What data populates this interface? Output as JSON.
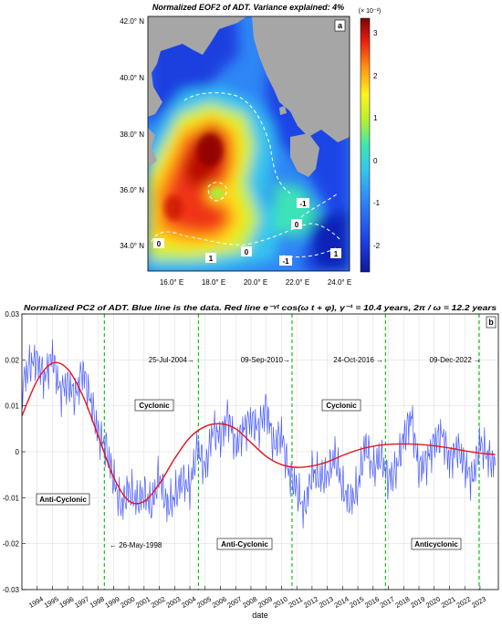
{
  "panel_a": {
    "title": "Normalized EOF2 of ADT. Variance explained: 4%",
    "panel_label": "a",
    "lat_ticks": [
      "42.0° N",
      "40.0° N",
      "38.0° N",
      "36.0° N",
      "34.0° N"
    ],
    "lon_ticks": [
      "16.0° E",
      "18.0° E",
      "20.0° E",
      "22.0° E",
      "24.0° E"
    ],
    "colorbar": {
      "scale_label": "(× 10⁻²)",
      "ticks": [
        "3",
        "2",
        "1",
        "0",
        "-1",
        "-2"
      ]
    },
    "contour_labels": [
      "-1",
      "0",
      "0",
      "1",
      "0",
      "-1",
      "1"
    ]
  },
  "panel_b": {
    "title": "Normalized PC2 of ADT. Blue line is the data. Red line e⁻ᵞᵗ cos(ω t + φ),  γ⁻¹ = 10.4 years,  2π / ω = 12.2 years",
    "panel_label": "b",
    "xlabel": "date",
    "date_annotations": [
      "← 26-May-1998",
      "25-Jul-2004→",
      "09-Sep-2010→",
      "24-Oct-2016 →",
      "09-Dec-2022 →"
    ],
    "regime_labels": [
      "Anti-Cyclonic",
      "Cyclonic",
      "Anti-Cyclonic",
      "Cyclonic",
      "Anticyclonic"
    ]
  },
  "colors": {
    "data_line": "#4a5cff",
    "fit_line": "#e8141b",
    "marker_line": "#16c416",
    "land": "#a6a6a6"
  },
  "chart_data": [
    {
      "type": "heatmap",
      "title": "Normalized EOF2 of ADT. Variance explained: 4%",
      "x_range": [
        14.8,
        24.4
      ],
      "y_range": [
        33.2,
        42.0
      ],
      "colorbar_range": [
        -2.6,
        3.4
      ],
      "colorbar_units": "× 10⁻²",
      "features": [
        {
          "name": "max",
          "lon": 17.8,
          "lat": 37.6,
          "value": 3.2
        },
        {
          "name": "high_south",
          "lon": 17.0,
          "lat": 34.6,
          "value": 2.6
        },
        {
          "name": "min_east",
          "lon": 23.5,
          "lat": 34.5,
          "value": -2.5
        }
      ]
    },
    {
      "type": "line",
      "title": "Normalized PC2 of ADT. Blue line is the data. Red line e⁻ᵞᵗ cos(ω t + φ),  γ⁻¹ = 10.4 years,  2π / ω = 12.2 years",
      "xlabel": "date",
      "ylabel": "",
      "xlim": [
        1993.0,
        2024.2
      ],
      "ylim": [
        -0.03,
        0.03
      ],
      "grid": true,
      "x_ticks": [
        1994,
        1995,
        1996,
        1997,
        1998,
        1999,
        2000,
        2001,
        2002,
        2003,
        2004,
        2005,
        2006,
        2007,
        2008,
        2009,
        2010,
        2011,
        2012,
        2013,
        2014,
        2015,
        2016,
        2017,
        2018,
        2019,
        2020,
        2021,
        2022,
        2023
      ],
      "y_ticks": [
        -0.03,
        -0.02,
        -0.01,
        0,
        0.01,
        0.02,
        0.03
      ],
      "vertical_markers": [
        1998.4,
        2004.56,
        2010.69,
        2016.81,
        2022.94
      ],
      "series": [
        {
          "x": [
            1993.0,
            1993.5,
            1994.0,
            1994.5,
            1995.0,
            1995.5,
            1996.0,
            1996.5,
            1997.0,
            1997.5,
            1998.0,
            1998.5,
            1999.0,
            1999.5,
            2000.0,
            2000.5,
            2001.0,
            2001.5,
            2002.0,
            2002.5,
            2003.0,
            2003.5,
            2004.0,
            2004.5,
            2005.0,
            2005.5,
            2006.0,
            2006.5,
            2007.0,
            2007.5,
            2008.0,
            2008.5,
            2009.0,
            2009.5,
            2010.0,
            2010.5,
            2011.0,
            2011.5,
            2012.0,
            2012.5,
            2013.0,
            2013.5,
            2014.0,
            2014.5,
            2015.0,
            2015.5,
            2016.0,
            2016.5,
            2017.0,
            2017.5,
            2018.0,
            2018.5,
            2019.0,
            2019.5,
            2020.0,
            2020.5,
            2021.0,
            2021.5,
            2022.0,
            2022.5,
            2023.0,
            2023.5,
            2024.0
          ],
          "values": [
            0.014,
            0.019,
            0.02,
            0.016,
            0.021,
            0.013,
            0.015,
            0.012,
            0.018,
            0.011,
            0.004,
            0.001,
            -0.006,
            -0.012,
            -0.008,
            -0.011,
            -0.009,
            -0.012,
            -0.005,
            -0.012,
            -0.01,
            -0.006,
            -0.008,
            0.001,
            -0.004,
            0.005,
            0.003,
            0.008,
            0.001,
            0.005,
            0.007,
            0.005,
            0.01,
            0.001,
            0.004,
            -0.005,
            -0.008,
            -0.013,
            -0.004,
            -0.006,
            -0.005,
            -0.001,
            -0.008,
            -0.011,
            -0.008,
            0.002,
            -0.004,
            -0.001,
            -0.006,
            -0.004,
            0.003,
            0.008,
            -0.004,
            -0.002,
            0.002,
            0.004,
            -0.002,
            0.001,
            -0.003,
            -0.006,
            0.002,
            -0.001,
            -0.003
          ]
        },
        {
          "x": [
            1993.0,
            1994.0,
            1995.0,
            1996.0,
            1997.0,
            1998.0,
            1999.0,
            2000.0,
            2001.0,
            2002.0,
            2003.0,
            2004.0,
            2005.0,
            2006.0,
            2007.0,
            2008.0,
            2009.0,
            2010.0,
            2011.0,
            2012.0,
            2013.0,
            2014.0,
            2015.0,
            2016.0,
            2017.0,
            2018.0,
            2019.0,
            2020.0,
            2021.0,
            2022.0,
            2023.0,
            2024.0
          ],
          "values": [
            0.0078,
            0.0155,
            0.0193,
            0.018,
            0.0121,
            0.0034,
            -0.0055,
            -0.0107,
            -0.0108,
            -0.007,
            -0.0015,
            0.0031,
            0.0055,
            0.0061,
            0.005,
            0.002,
            -0.001,
            -0.0028,
            -0.0034,
            -0.0031,
            -0.0022,
            -0.0008,
            0.0004,
            0.0012,
            0.0016,
            0.0017,
            0.0016,
            0.0013,
            0.0008,
            0.0002,
            -0.0003,
            -0.0006
          ]
        }
      ]
    }
  ]
}
